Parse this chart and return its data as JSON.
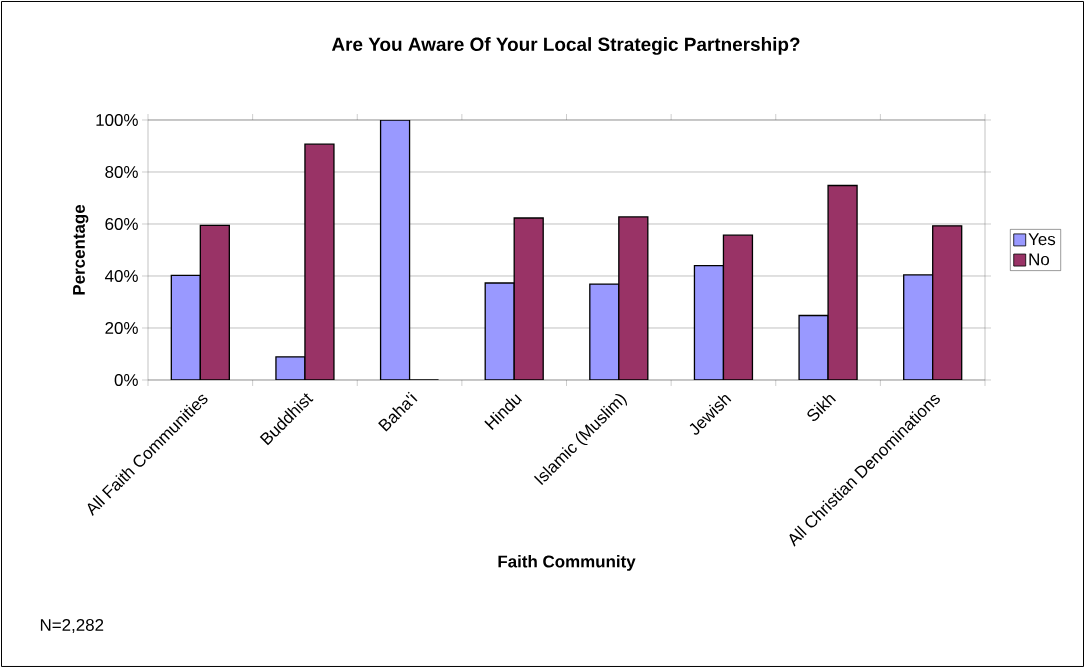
{
  "chart_data": {
    "type": "bar",
    "title": "Are You Aware Of Your Local Strategic Partnership?",
    "xlabel": "Faith Community",
    "ylabel": "Percentage",
    "categories": [
      "All Faith Communities",
      "Buddhist",
      "Baha'i",
      "Hindu",
      "Islamic (Muslim)",
      "Jewish",
      "Sikh",
      "All Christian Denominations"
    ],
    "series": [
      {
        "name": "Yes",
        "color": "#9999ff",
        "values": [
          40.2,
          8.9,
          100,
          37.3,
          36.9,
          44.0,
          24.8,
          40.4
        ]
      },
      {
        "name": "No",
        "color": "#993366",
        "values": [
          59.5,
          90.7,
          0,
          62.3,
          62.7,
          55.7,
          74.8,
          59.3
        ]
      }
    ],
    "ylim": [
      0,
      100
    ],
    "yticks": [
      {
        "value": 0,
        "label": "0%"
      },
      {
        "value": 20,
        "label": "20%"
      },
      {
        "value": 40,
        "label": "40%"
      },
      {
        "value": 60,
        "label": "60%"
      },
      {
        "value": 80,
        "label": "80%"
      },
      {
        "value": 100,
        "label": "100%"
      }
    ],
    "grid": "y",
    "legend": "right",
    "annotations": [
      "N=2,282"
    ]
  }
}
